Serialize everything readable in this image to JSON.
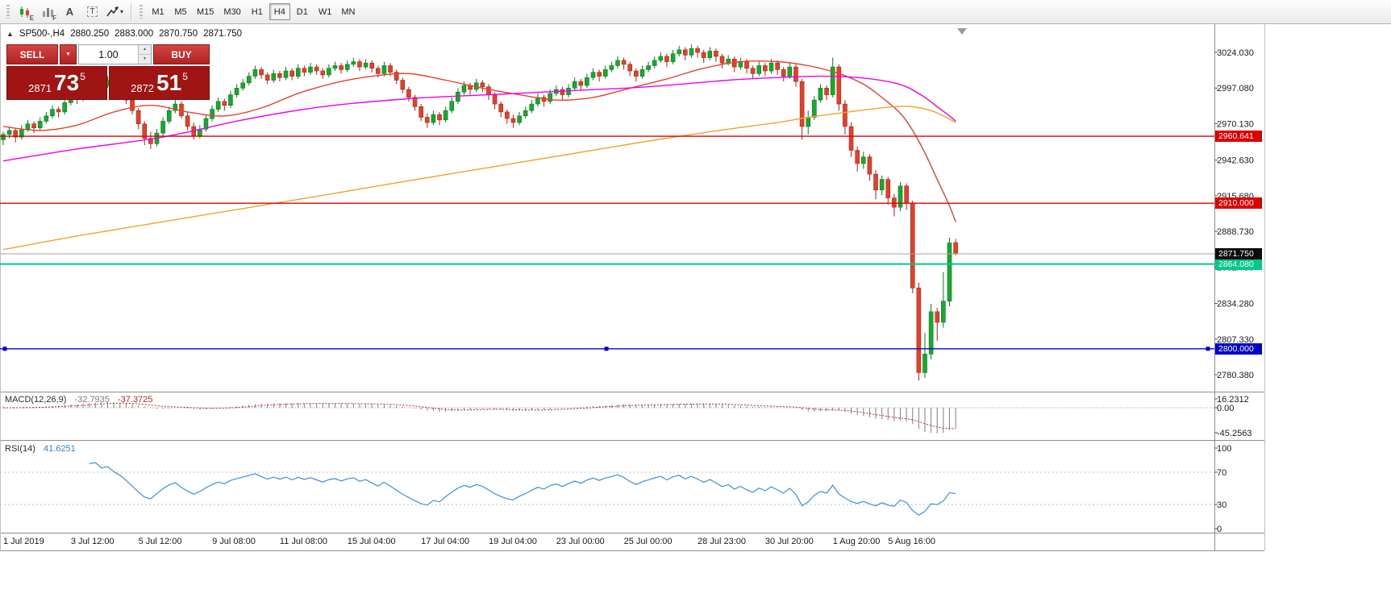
{
  "toolbar": {
    "tools": [
      {
        "name": "candlestick-chart-tool",
        "badge": "E"
      },
      {
        "name": "bar-chart-tool",
        "badge": "F"
      },
      {
        "name": "label-tool",
        "label": "A"
      },
      {
        "name": "text-tool",
        "label": "T"
      },
      {
        "name": "drawing-tools",
        "caret": "▾"
      }
    ],
    "timeframes": [
      "M1",
      "M5",
      "M15",
      "M30",
      "H1",
      "H4",
      "D1",
      "W1",
      "MN"
    ],
    "active_timeframe": "H4"
  },
  "chart": {
    "header": {
      "collapse": "▲",
      "title": "SP500-,H4",
      "open": "2880.250",
      "high": "2883.000",
      "low": "2870.750",
      "close": "2871.750"
    },
    "one_click": {
      "sell_label": "SELL",
      "buy_label": "BUY",
      "volume": "1.00",
      "sell_price": {
        "small": "2871",
        "big": "73",
        "sup": "5"
      },
      "buy_price": {
        "small": "2872",
        "big": "51",
        "sup": "5"
      }
    },
    "macd_label": {
      "name": "MACD(12,26,9)",
      "main": "-32.7935",
      "signal": "-37.3725"
    },
    "rsi_label": {
      "name": "RSI(14)",
      "value": "41.6251"
    }
  },
  "chart_data": {
    "type": "candlestick",
    "symbol": "SP500-",
    "timeframe": "H4",
    "current_bar": {
      "open": 2880.25,
      "high": 2883.0,
      "low": 2870.75,
      "close": 2871.75
    },
    "y_axis": {
      "values": [
        3024.03,
        2997.08,
        2970.13,
        2942.63,
        2915.68,
        2888.73,
        2861.78,
        2834.28,
        2807.33,
        2780.38
      ]
    },
    "x_axis": {
      "ticks": [
        {
          "label": "1 Jul 2019",
          "i": 0
        },
        {
          "label": "3 Jul 12:00",
          "i": 11
        },
        {
          "label": "5 Jul 12:00",
          "i": 22
        },
        {
          "label": "9 Jul 08:00",
          "i": 34
        },
        {
          "label": "11 Jul 08:00",
          "i": 45
        },
        {
          "label": "15 Jul 04:00",
          "i": 56
        },
        {
          "label": "17 Jul 04:00",
          "i": 68
        },
        {
          "label": "19 Jul 04:00",
          "i": 79
        },
        {
          "label": "23 Jul 00:00",
          "i": 90
        },
        {
          "label": "25 Jul 00:00",
          "i": 101
        },
        {
          "label": "28 Jul 23:00",
          "i": 113
        },
        {
          "label": "30 Jul 20:00",
          "i": 124
        },
        {
          "label": "1 Aug 20:00",
          "i": 135
        },
        {
          "label": "5 Aug 16:00",
          "i": 144
        }
      ]
    },
    "candle_colors": {
      "up_fill": "#17a82e",
      "up_stroke": "#0b7d1f",
      "down_fill": "#e3402a",
      "down_stroke": "#a8271a"
    },
    "candles": [
      [
        2958,
        2964,
        2954,
        2962
      ],
      [
        2962,
        2968,
        2959,
        2965
      ],
      [
        2965,
        2967,
        2956,
        2960
      ],
      [
        2960,
        2969,
        2958,
        2966
      ],
      [
        2966,
        2973,
        2964,
        2970
      ],
      [
        2970,
        2972,
        2963,
        2967
      ],
      [
        2967,
        2975,
        2965,
        2972
      ],
      [
        2972,
        2979,
        2970,
        2976
      ],
      [
        2976,
        2984,
        2974,
        2981
      ],
      [
        2981,
        2983,
        2975,
        2979
      ],
      [
        2979,
        2989,
        2977,
        2986
      ],
      [
        2986,
        2994,
        2984,
        2991
      ],
      [
        2991,
        2993,
        2985,
        2989
      ],
      [
        2989,
        2999,
        2987,
        2996
      ],
      [
        2996,
        3003,
        2994,
        3000
      ],
      [
        3000,
        3007,
        2998,
        3004
      ],
      [
        3004,
        3006,
        2996,
        2999
      ],
      [
        2999,
        3006,
        2997,
        3003
      ],
      [
        3003,
        3005,
        2995,
        2998
      ],
      [
        2998,
        3001,
        2991,
        2994
      ],
      [
        2994,
        2996,
        2985,
        2988
      ],
      [
        2988,
        2991,
        2977,
        2980
      ],
      [
        2980,
        2982,
        2966,
        2970
      ],
      [
        2970,
        2972,
        2954,
        2959
      ],
      [
        2959,
        2964,
        2951,
        2955
      ],
      [
        2955,
        2966,
        2953,
        2963
      ],
      [
        2963,
        2975,
        2961,
        2972
      ],
      [
        2972,
        2983,
        2970,
        2980
      ],
      [
        2980,
        2988,
        2978,
        2985
      ],
      [
        2985,
        2987,
        2974,
        2976
      ],
      [
        2976,
        2979,
        2965,
        2968
      ],
      [
        2968,
        2971,
        2958,
        2961
      ],
      [
        2961,
        2969,
        2959,
        2966
      ],
      [
        2966,
        2977,
        2964,
        2974
      ],
      [
        2974,
        2984,
        2972,
        2981
      ],
      [
        2981,
        2990,
        2979,
        2987
      ],
      [
        2987,
        2989,
        2980,
        2984
      ],
      [
        2984,
        2995,
        2982,
        2992
      ],
      [
        2992,
        3000,
        2990,
        2997
      ],
      [
        2997,
        3004,
        2995,
        3001
      ],
      [
        3001,
        3009,
        2999,
        3006
      ],
      [
        3006,
        3014,
        3004,
        3011
      ],
      [
        3011,
        3013,
        3004,
        3007
      ],
      [
        3007,
        3009,
        3000,
        3003
      ],
      [
        3003,
        3011,
        3001,
        3008
      ],
      [
        3008,
        3010,
        3002,
        3005
      ],
      [
        3005,
        3013,
        3003,
        3010
      ],
      [
        3010,
        3012,
        3003,
        3006
      ],
      [
        3006,
        3015,
        3004,
        3012
      ],
      [
        3012,
        3014,
        3006,
        3009
      ],
      [
        3009,
        3016,
        3007,
        3013
      ],
      [
        3013,
        3015,
        3007,
        3010
      ],
      [
        3010,
        3012,
        3004,
        3007
      ],
      [
        3007,
        3015,
        3005,
        3012
      ],
      [
        3012,
        3017,
        3010,
        3014
      ],
      [
        3014,
        3016,
        3008,
        3011
      ],
      [
        3011,
        3018,
        3009,
        3015
      ],
      [
        3015,
        3020,
        3013,
        3017
      ],
      [
        3017,
        3019,
        3010,
        3013
      ],
      [
        3013,
        3019,
        3011,
        3016
      ],
      [
        3016,
        3018,
        3009,
        3012
      ],
      [
        3012,
        3014,
        3005,
        3008
      ],
      [
        3008,
        3017,
        3006,
        3014
      ],
      [
        3014,
        3016,
        3006,
        3009
      ],
      [
        3009,
        3011,
        3000,
        3003
      ],
      [
        3003,
        3005,
        2993,
        2996
      ],
      [
        2996,
        2998,
        2987,
        2990
      ],
      [
        2990,
        2992,
        2980,
        2983
      ],
      [
        2983,
        2985,
        2972,
        2975
      ],
      [
        2975,
        2978,
        2967,
        2971
      ],
      [
        2971,
        2980,
        2969,
        2977
      ],
      [
        2977,
        2979,
        2969,
        2973
      ],
      [
        2973,
        2983,
        2971,
        2980
      ],
      [
        2980,
        2990,
        2978,
        2987
      ],
      [
        2987,
        2997,
        2985,
        2994
      ],
      [
        2994,
        3002,
        2992,
        2999
      ],
      [
        2999,
        3001,
        2992,
        2996
      ],
      [
        2996,
        3004,
        2994,
        3001
      ],
      [
        3001,
        3003,
        2994,
        2998
      ],
      [
        2998,
        3000,
        2988,
        2992
      ],
      [
        2992,
        2994,
        2981,
        2985
      ],
      [
        2985,
        2987,
        2975,
        2979
      ],
      [
        2979,
        2981,
        2970,
        2974
      ],
      [
        2974,
        2977,
        2967,
        2971
      ],
      [
        2971,
        2979,
        2969,
        2976
      ],
      [
        2976,
        2983,
        2974,
        2980
      ],
      [
        2980,
        2988,
        2978,
        2985
      ],
      [
        2985,
        2993,
        2983,
        2990
      ],
      [
        2990,
        2992,
        2983,
        2987
      ],
      [
        2987,
        2996,
        2985,
        2993
      ],
      [
        2993,
        2999,
        2991,
        2996
      ],
      [
        2996,
        2998,
        2988,
        2992
      ],
      [
        2992,
        3000,
        2990,
        2997
      ],
      [
        2997,
        3005,
        2995,
        3002
      ],
      [
        3002,
        3004,
        2995,
        2999
      ],
      [
        2999,
        3008,
        2997,
        3005
      ],
      [
        3005,
        3012,
        3003,
        3009
      ],
      [
        3009,
        3011,
        3002,
        3006
      ],
      [
        3006,
        3014,
        3004,
        3011
      ],
      [
        3011,
        3017,
        3009,
        3014
      ],
      [
        3014,
        3021,
        3012,
        3018
      ],
      [
        3018,
        3020,
        3011,
        3015
      ],
      [
        3015,
        3017,
        3006,
        3010
      ],
      [
        3010,
        3012,
        3002,
        3006
      ],
      [
        3006,
        3014,
        3004,
        3011
      ],
      [
        3011,
        3017,
        3009,
        3014
      ],
      [
        3014,
        3021,
        3012,
        3018
      ],
      [
        3018,
        3024,
        3016,
        3021
      ],
      [
        3021,
        3023,
        3013,
        3017
      ],
      [
        3017,
        3026,
        3015,
        3023
      ],
      [
        3023,
        3029,
        3021,
        3026
      ],
      [
        3026,
        3028,
        3018,
        3022
      ],
      [
        3022,
        3030,
        3020,
        3027
      ],
      [
        3027,
        3029,
        3020,
        3024
      ],
      [
        3024,
        3026,
        3016,
        3020
      ],
      [
        3020,
        3028,
        3018,
        3025
      ],
      [
        3025,
        3027,
        3017,
        3021
      ],
      [
        3021,
        3023,
        3012,
        3016
      ],
      [
        3016,
        3022,
        3014,
        3019
      ],
      [
        3019,
        3021,
        3009,
        3013
      ],
      [
        3013,
        3020,
        3011,
        3017
      ],
      [
        3017,
        3019,
        3008,
        3012
      ],
      [
        3012,
        3014,
        3004,
        3008
      ],
      [
        3008,
        3017,
        3006,
        3014
      ],
      [
        3014,
        3016,
        3006,
        3010
      ],
      [
        3010,
        3019,
        3008,
        3016
      ],
      [
        3016,
        3018,
        3007,
        3011
      ],
      [
        3011,
        3013,
        3002,
        3006
      ],
      [
        3006,
        3016,
        3004,
        3013
      ],
      [
        3013,
        3015,
        2998,
        3002
      ],
      [
        3002,
        3004,
        2958,
        2968
      ],
      [
        2968,
        2980,
        2962,
        2975
      ],
      [
        2975,
        2991,
        2973,
        2988
      ],
      [
        2988,
        3000,
        2986,
        2997
      ],
      [
        2997,
        2999,
        2988,
        2992
      ],
      [
        2992,
        3020,
        2990,
        3013
      ],
      [
        3013,
        3015,
        2980,
        2985
      ],
      [
        2985,
        2988,
        2962,
        2968
      ],
      [
        2968,
        2971,
        2945,
        2950
      ],
      [
        2950,
        2953,
        2934,
        2940
      ],
      [
        2940,
        2949,
        2936,
        2945
      ],
      [
        2945,
        2947,
        2927,
        2932
      ],
      [
        2932,
        2935,
        2913,
        2920
      ],
      [
        2920,
        2931,
        2916,
        2928
      ],
      [
        2928,
        2930,
        2909,
        2914
      ],
      [
        2914,
        2917,
        2900,
        2907
      ],
      [
        2907,
        2926,
        2904,
        2923
      ],
      [
        2923,
        2925,
        2905,
        2910
      ],
      [
        2910,
        2912,
        2842,
        2846
      ],
      [
        2846,
        2850,
        2776,
        2782
      ],
      [
        2782,
        2812,
        2778,
        2796
      ],
      [
        2796,
        2834,
        2792,
        2828
      ],
      [
        2828,
        2831,
        2806,
        2820
      ],
      [
        2820,
        2858,
        2816,
        2836
      ],
      [
        2836,
        2884,
        2832,
        2880
      ],
      [
        2880.25,
        2883,
        2870.75,
        2871.75
      ]
    ],
    "moving_averages": [
      {
        "name": "ma-fast",
        "color": "#e8402f",
        "points": [
          [
            0,
            2968
          ],
          [
            6,
            2965
          ],
          [
            12,
            2969
          ],
          [
            18,
            2979
          ],
          [
            24,
            2984
          ],
          [
            30,
            2979
          ],
          [
            36,
            2976
          ],
          [
            42,
            2982
          ],
          [
            48,
            2993
          ],
          [
            54,
            3001
          ],
          [
            60,
            3006
          ],
          [
            66,
            3008
          ],
          [
            72,
            3003
          ],
          [
            78,
            2997
          ],
          [
            84,
            2992
          ],
          [
            90,
            2988
          ],
          [
            96,
            2990
          ],
          [
            102,
            2997
          ],
          [
            108,
            3004
          ],
          [
            114,
            3012
          ],
          [
            120,
            3017
          ],
          [
            126,
            3017
          ],
          [
            131,
            3014
          ],
          [
            136,
            3008
          ],
          [
            140,
            3000
          ],
          [
            143,
            2990
          ],
          [
            146,
            2978
          ],
          [
            148,
            2965
          ],
          [
            150,
            2948
          ],
          [
            152,
            2928
          ],
          [
            154,
            2908
          ],
          [
            155,
            2896
          ]
        ]
      },
      {
        "name": "ma-medium",
        "color": "#ee00ee",
        "points": [
          [
            0,
            2942
          ],
          [
            12,
            2951
          ],
          [
            26,
            2960
          ],
          [
            39,
            2973
          ],
          [
            52,
            2983
          ],
          [
            66,
            2989
          ],
          [
            79,
            2992
          ],
          [
            92,
            2995
          ],
          [
            105,
            2998
          ],
          [
            118,
            3003
          ],
          [
            126,
            3005
          ],
          [
            133,
            3006
          ],
          [
            139,
            3005
          ],
          [
            144,
            3002
          ],
          [
            147,
            2998
          ],
          [
            150,
            2990
          ],
          [
            152,
            2983
          ],
          [
            154,
            2976
          ],
          [
            155,
            2972
          ]
        ]
      },
      {
        "name": "ma-slow",
        "color": "#f2a32a",
        "points": [
          [
            0,
            2875
          ],
          [
            13,
            2886
          ],
          [
            26,
            2896
          ],
          [
            39,
            2906
          ],
          [
            52,
            2916
          ],
          [
            66,
            2927
          ],
          [
            79,
            2937
          ],
          [
            92,
            2947
          ],
          [
            105,
            2957
          ],
          [
            118,
            2966
          ],
          [
            126,
            2971
          ],
          [
            131,
            2975
          ],
          [
            136,
            2978
          ],
          [
            141,
            2981
          ],
          [
            145,
            2983
          ],
          [
            148,
            2983
          ],
          [
            151,
            2980
          ],
          [
            153,
            2976
          ],
          [
            155,
            2971
          ]
        ]
      }
    ],
    "hlines": [
      {
        "price": 2960.641,
        "label": "2960.641",
        "color": "#dd0000",
        "width": 1.4
      },
      {
        "price": 2910.0,
        "label": "2910.000",
        "color": "#dd0000",
        "width": 1.4
      },
      {
        "price": 2864.08,
        "label": "2864.080",
        "color": "#00ca8a",
        "width": 2
      },
      {
        "price": 2800.0,
        "label": "2800.000",
        "color": "#0000cc",
        "width": 1.4,
        "handles": true
      }
    ],
    "price_line": {
      "price": 2871.75,
      "label": "2871.750",
      "line_color": "#a3a3a3",
      "flag_color": "#0b0b0b"
    },
    "macd": {
      "params": [
        12,
        26,
        9
      ],
      "axis": [
        {
          "text": "16.2312",
          "v": 16.2312
        },
        {
          "text": "0.00",
          "v": 0
        },
        {
          "text": "-45.2563",
          "v": -45.2563
        }
      ],
      "bar_color": "#7f7f7f",
      "signal_color": "#d42020"
    },
    "rsi": {
      "period": 14,
      "levels": [
        100,
        70,
        30,
        0
      ],
      "dashed_levels": [
        70,
        30
      ],
      "color": "#3f8fd9"
    }
  }
}
